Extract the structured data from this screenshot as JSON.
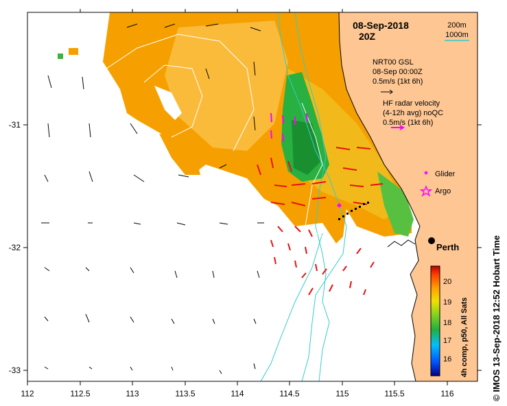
{
  "map": {
    "date": "08-Sep-2018",
    "time": "20Z",
    "lon_ticks": [
      "112",
      "112.5",
      "113",
      "113.5",
      "114",
      "114.5",
      "115",
      "115.5",
      "116"
    ],
    "lat_ticks": [
      "-31",
      "-32",
      "-33"
    ],
    "lon_range": [
      112,
      116.3
    ],
    "lat_range": [
      -30.1,
      -33.1
    ],
    "bathymetry": {
      "line1": "200m",
      "line2": "1000m",
      "color": "#33cccc"
    },
    "model_legend": {
      "line1": "NRT00 GSL",
      "line2": "08-Sep 00:00Z",
      "line3": "0.5m/s (1kt 6h)"
    },
    "radar_legend": {
      "line1": "HF radar velocity",
      "line2": "(4-12h avg) noQC",
      "line3": "0.5m/s (1kt 6h)",
      "color": "#ff00ff"
    },
    "markers": [
      {
        "label": "Glider",
        "color": "#ff00ff",
        "icon": "diamond-icon"
      },
      {
        "label": "Argo",
        "color": "#ff00ff",
        "icon": "star-icon"
      }
    ],
    "city": {
      "name": "Perth",
      "lon": 115.86,
      "lat": -31.95
    },
    "colorbar": {
      "label": "4h comp, p50, All Sats",
      "ticks": [
        "16",
        "17",
        "18",
        "19",
        "20"
      ],
      "min": 15.5,
      "max": 20.5
    },
    "credit": "© IMOS 13-Sep-2018 12:52 Hobart Time",
    "colors": {
      "land": "#fdc693",
      "sst_warm": "#f5a000",
      "sst_cool": "#28b040",
      "radar_arrow": "#e81010"
    }
  }
}
